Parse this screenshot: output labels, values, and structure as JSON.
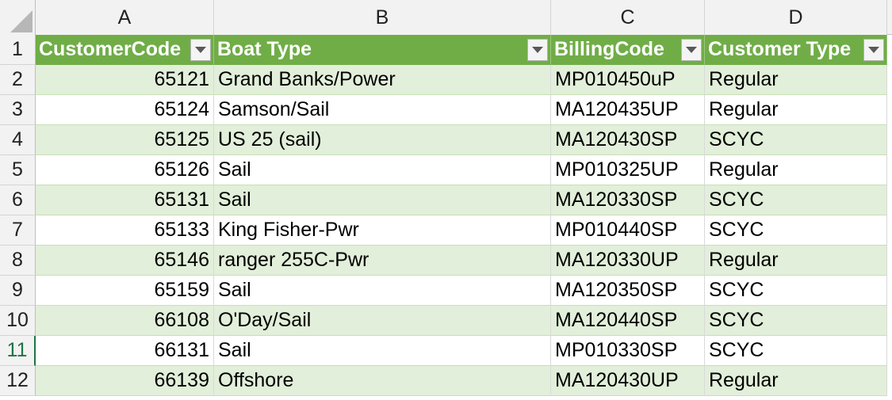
{
  "columns": [
    "A",
    "B",
    "C",
    "D"
  ],
  "headers": {
    "row_number": "1",
    "col1": "CustomerCode",
    "col2": "Boat Type",
    "col3": "BillingCode",
    "col4": "Customer Type"
  },
  "rows": [
    {
      "num": "2",
      "code": "65121",
      "boat": "Grand Banks/Power",
      "billing": "MP010450uP",
      "type": "Regular"
    },
    {
      "num": "3",
      "code": "65124",
      "boat": "Samson/Sail",
      "billing": "MA120435UP",
      "type": "Regular"
    },
    {
      "num": "4",
      "code": "65125",
      "boat": "US 25 (sail)",
      "billing": "MA120430SP",
      "type": "SCYC"
    },
    {
      "num": "5",
      "code": "65126",
      "boat": "Sail",
      "billing": "MP010325UP",
      "type": "Regular"
    },
    {
      "num": "6",
      "code": "65131",
      "boat": "Sail",
      "billing": "MA120330SP",
      "type": "SCYC"
    },
    {
      "num": "7",
      "code": "65133",
      "boat": "King Fisher-Pwr",
      "billing": "MP010440SP",
      "type": "SCYC"
    },
    {
      "num": "8",
      "code": "65146",
      "boat": "ranger 255C-Pwr",
      "billing": "MA120330UP",
      "type": "Regular"
    },
    {
      "num": "9",
      "code": "65159",
      "boat": "Sail",
      "billing": "MA120350SP",
      "type": "SCYC"
    },
    {
      "num": "10",
      "code": "66108",
      "boat": "O'Day/Sail",
      "billing": "MA120440SP",
      "type": "SCYC"
    },
    {
      "num": "11",
      "code": "66131",
      "boat": "Sail",
      "billing": "MP010330SP",
      "type": "SCYC"
    },
    {
      "num": "12",
      "code": "66139",
      "boat": "Offshore",
      "billing": "MA120430UP",
      "type": "Regular"
    }
  ],
  "colors": {
    "header_green": "#70ad47",
    "band_green": "#e2efda",
    "active_row_green": "#217346"
  },
  "icons": {
    "filter": "filter-dropdown-icon",
    "select_all": "select-all-triangle-icon"
  }
}
